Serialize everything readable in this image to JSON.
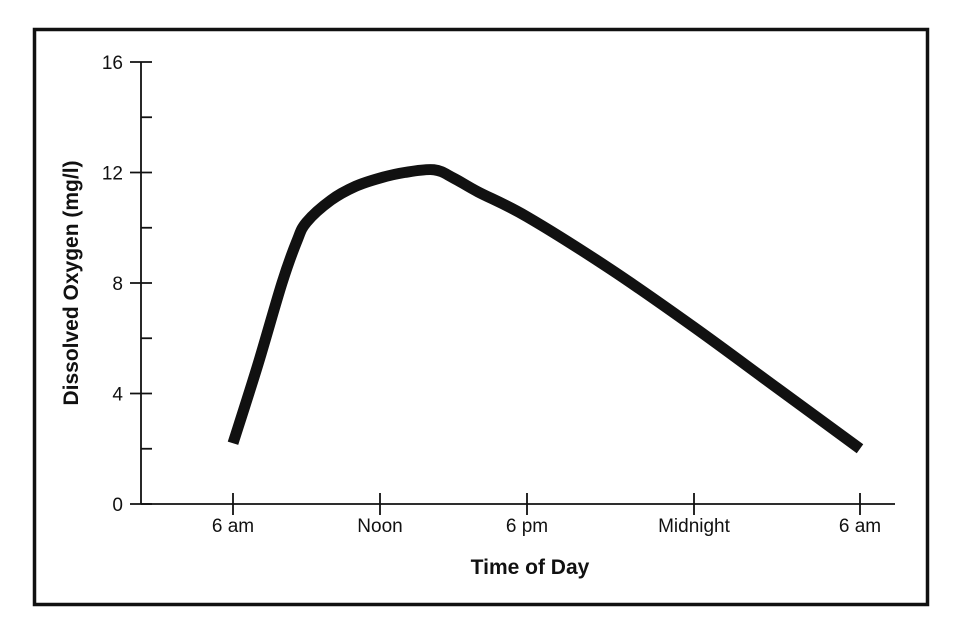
{
  "chart_data": {
    "type": "line",
    "title": "",
    "xlabel": "Time of Day",
    "ylabel": "Dissolved Oxygen (mg/l)",
    "ylim": [
      0,
      16
    ],
    "yticks": [
      0,
      4,
      8,
      12,
      16
    ],
    "yticks_minor": [
      2,
      6,
      10,
      14
    ],
    "xlim_hours": [
      6,
      30
    ],
    "xticks": [
      {
        "hour": 6,
        "label": "6 am"
      },
      {
        "hour": 12,
        "label": "Noon"
      },
      {
        "hour": 18,
        "label": "6 pm"
      },
      {
        "hour": 24,
        "label": "Midnight"
      },
      {
        "hour": 30,
        "label": "6 am"
      }
    ],
    "grid": false,
    "series": [
      {
        "name": "Dissolved Oxygen",
        "color": "#111111",
        "x": [
          6,
          7,
          8,
          8.6,
          9,
          10,
          11,
          12,
          13,
          14.2,
          15,
          16,
          18,
          21,
          24,
          27,
          30
        ],
        "y": [
          2.2,
          5.0,
          8.0,
          9.5,
          10.2,
          11.0,
          11.5,
          11.8,
          12.0,
          12.1,
          11.8,
          11.3,
          10.4,
          8.5,
          6.4,
          4.2,
          2.0
        ]
      }
    ]
  }
}
